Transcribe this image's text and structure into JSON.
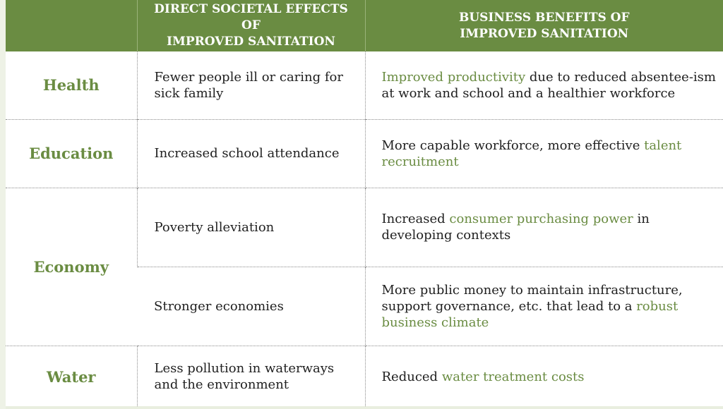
{
  "header": {
    "col1": "",
    "col2_line1": "DIRECT SOCIETAL EFFECTS OF",
    "col2_line2": "IMPROVED SANITATION",
    "col3_line1": "BUSINESS BENEFITS OF",
    "col3_line2": "IMPROVED SANITATION"
  },
  "rows": {
    "health": {
      "category": "Health",
      "effect": "Fewer people ill or caring for sick family",
      "benefit_highlight": "Improved productivity",
      "benefit_rest": " due to reduced absentee-ism at work and school and a healthier workforce"
    },
    "education": {
      "category": "Education",
      "effect": "Increased school attendance",
      "benefit_text": "More capable workforce, more effective ",
      "benefit_highlight": "talent recruitment"
    },
    "economy": {
      "category": "Economy",
      "effect1": "Poverty alleviation",
      "benefit1_pre": "Increased ",
      "benefit1_highlight": "consumer purchasing power",
      "benefit1_post": " in developing contexts",
      "effect2": "Stronger economies",
      "benefit2_pre": "More public money to maintain infrastructure, support governance, etc. that lead to a ",
      "benefit2_highlight": "robust business climate"
    },
    "water": {
      "category": "Water",
      "effect": "Less pollution in waterways and the environment",
      "benefit_pre": "Reduced ",
      "benefit_highlight": "water treatment costs"
    }
  },
  "colors": {
    "header_bg": "#6a8c42",
    "accent_text": "#6a8c42",
    "body_text": "#1f1f1f"
  }
}
